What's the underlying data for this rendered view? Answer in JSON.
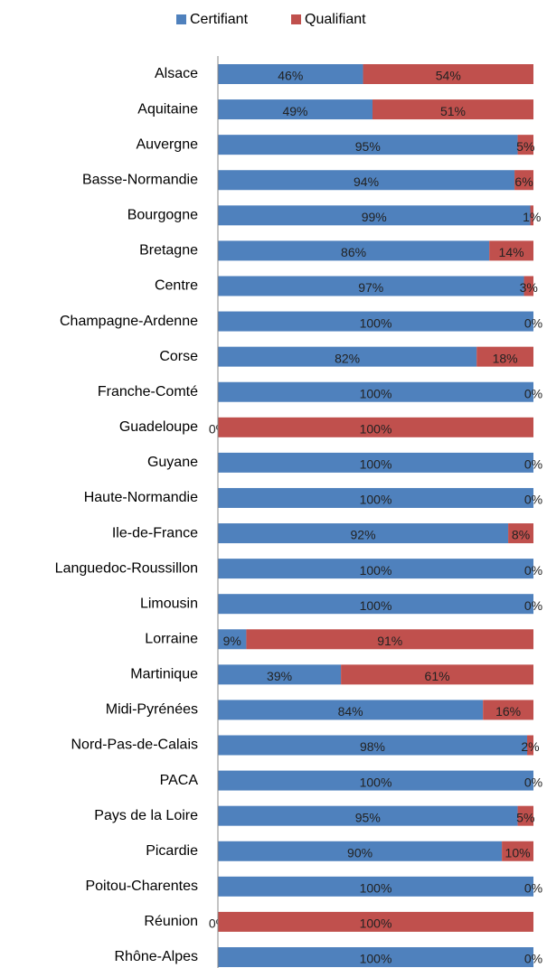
{
  "chart_data": {
    "type": "stacked_barh",
    "categories": [
      "Alsace",
      "Aquitaine",
      "Auvergne",
      "Basse-Normandie",
      "Bourgogne",
      "Bretagne",
      "Centre",
      "Champagne-Ardenne",
      "Corse",
      "Franche-Comté",
      "Guadeloupe",
      "Guyane",
      "Haute-Normandie",
      "Ile-de-France",
      "Languedoc-Roussillon",
      "Limousin",
      "Lorraine",
      "Martinique",
      "Midi-Pyrénées",
      "Nord-Pas-de-Calais",
      "PACA",
      "Pays de la Loire",
      "Picardie",
      "Poitou-Charentes",
      "Réunion",
      "Rhône-Alpes"
    ],
    "series": [
      {
        "name": "Certifiant",
        "color": "#4f81bd",
        "values": [
          46,
          49,
          95,
          94,
          99,
          86,
          97,
          100,
          82,
          100,
          0,
          100,
          100,
          92,
          100,
          100,
          9,
          39,
          84,
          98,
          100,
          95,
          90,
          100,
          0,
          100
        ],
        "value_labels": [
          "46%",
          "49%",
          "95%",
          "94%",
          "99%",
          "86%",
          "97%",
          "100%",
          "82%",
          "100%",
          "0%",
          "100%",
          "100%",
          "92%",
          "100%",
          "100%",
          "9%",
          "39%",
          "84%",
          "98%",
          "100%",
          "95%",
          "90%",
          "100%",
          "0%",
          "100%"
        ]
      },
      {
        "name": "Qualifiant",
        "color": "#c0504d",
        "values": [
          54,
          51,
          5,
          6,
          1,
          14,
          3,
          0,
          18,
          0,
          100,
          0,
          0,
          8,
          0,
          0,
          91,
          61,
          16,
          2,
          0,
          5,
          10,
          0,
          100,
          0
        ],
        "value_labels": [
          "54%",
          "51%",
          "5%",
          "6%",
          "1%",
          "14%",
          "3%",
          "0%",
          "18%",
          "0%",
          "100%",
          "0%",
          "0%",
          "8%",
          "0%",
          "0%",
          "91%",
          "61%",
          "16%",
          "2%",
          "0%",
          "5%",
          "10%",
          "0%",
          "100%",
          "0%"
        ]
      }
    ],
    "xlim": [
      0,
      100
    ],
    "legend": "top"
  }
}
